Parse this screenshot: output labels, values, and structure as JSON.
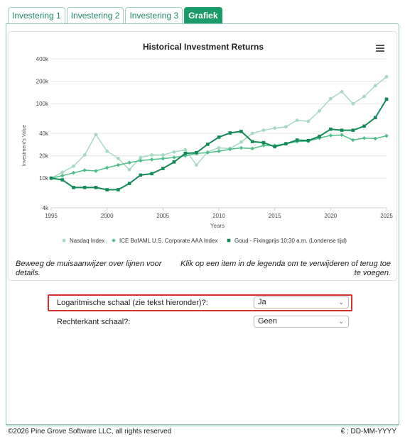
{
  "tabs": [
    {
      "label": "Investering 1",
      "active": false
    },
    {
      "label": "Investering 2",
      "active": false
    },
    {
      "label": "Investering 3",
      "active": false
    },
    {
      "label": "Grafiek",
      "active": true
    }
  ],
  "chart_data": {
    "type": "line",
    "title": "Historical Investment Returns",
    "xlabel": "Years",
    "ylabel": "Investment's Value",
    "yscale": "log",
    "ylim": [
      4000,
      400000
    ],
    "xlim": [
      1995,
      2025
    ],
    "x_ticks": [
      "1995",
      "2000",
      "2005",
      "2010",
      "2015",
      "2020",
      "2025"
    ],
    "y_ticks": [
      {
        "value": 4000,
        "label": "4k"
      },
      {
        "value": 10000,
        "label": "10k"
      },
      {
        "value": 20000,
        "label": "20k"
      },
      {
        "value": 40000,
        "label": "40k"
      },
      {
        "value": 100000,
        "label": "100k"
      },
      {
        "value": 200000,
        "label": "200k"
      },
      {
        "value": 400000,
        "label": "400k"
      }
    ],
    "legend_position": "bottom",
    "x": [
      1995,
      1996,
      1997,
      1998,
      1999,
      2000,
      2001,
      2002,
      2003,
      2004,
      2005,
      2006,
      2007,
      2008,
      2009,
      2010,
      2011,
      2012,
      2013,
      2014,
      2015,
      2016,
      2017,
      2018,
      2019,
      2020,
      2021,
      2022,
      2023,
      2024,
      2025
    ],
    "series": [
      {
        "name": "Nasdaq Index",
        "color": "#a6d9c2",
        "marker": "circle",
        "values": [
          10000,
          12000,
          14500,
          20500,
          38500,
          23000,
          18500,
          13000,
          19000,
          20500,
          20500,
          22500,
          24000,
          15000,
          22500,
          25500,
          25000,
          30500,
          40000,
          44000,
          47000,
          49000,
          60000,
          58000,
          80000,
          117000,
          145000,
          100000,
          125000,
          175000,
          230000
        ]
      },
      {
        "name": "ICE BofAML U.S. Corporate AAA Index",
        "color": "#4cbf8a",
        "marker": "diamond",
        "values": [
          10000,
          10800,
          11800,
          12800,
          12500,
          13800,
          15000,
          16200,
          17200,
          17800,
          18300,
          19000,
          20000,
          21500,
          22000,
          23000,
          24500,
          25500,
          25000,
          27500,
          27500,
          29000,
          31000,
          31500,
          34500,
          37500,
          38000,
          32500,
          34500,
          34000,
          37000
        ]
      },
      {
        "name": "Goud - Fixingprijs 10:30 a.m. (Londense tijd)",
        "color": "#138a57",
        "marker": "square",
        "values": [
          10000,
          9500,
          7500,
          7500,
          7500,
          7000,
          7000,
          8500,
          11000,
          11500,
          13500,
          16500,
          21500,
          22000,
          28500,
          35500,
          40500,
          42500,
          31000,
          30000,
          26500,
          29000,
          32500,
          32000,
          36500,
          45500,
          44000,
          44000,
          50000,
          65000,
          115000
        ]
      }
    ]
  },
  "chart_menu_icon": "hamburger-menu-icon",
  "hints": {
    "left": "Beweeg de muisaanwijzer over lijnen voor details.",
    "right": "Klik op een item in de legenda om te verwijderen of terug toe te voegen."
  },
  "options": {
    "log_scale": {
      "label": "Logaritmische schaal (zie tekst hieronder)?:",
      "value": "Ja"
    },
    "right_scale": {
      "label": "Rechterkant schaal?:",
      "value": "Geen"
    }
  },
  "footer": {
    "copyright": "©2026 Pine Grove Software LLC, all rights reserved",
    "locale": "€ : DD-MM-YYYY"
  },
  "colors": {
    "accent": "#1b9b6a",
    "highlight": "#d92e2e"
  }
}
